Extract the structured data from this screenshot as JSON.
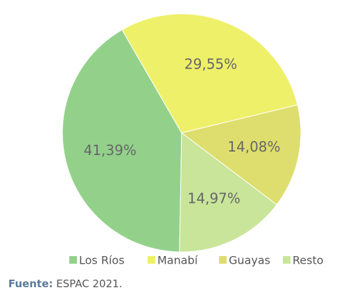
{
  "chart_data": {
    "type": "pie",
    "categories": [
      "Los Ríos",
      "Manabí",
      "Guayas",
      "Resto"
    ],
    "values": [
      41.39,
      29.55,
      14.08,
      14.97
    ],
    "value_labels": [
      "41,39%",
      "29,55%",
      "14,08%",
      "14,97%"
    ],
    "colors": [
      "#93d18b",
      "#eef06a",
      "#dede6e",
      "#c8e59a"
    ],
    "legend": "bottom"
  },
  "source": {
    "label": "Fuente:",
    "text": "ESPAC 2021."
  }
}
